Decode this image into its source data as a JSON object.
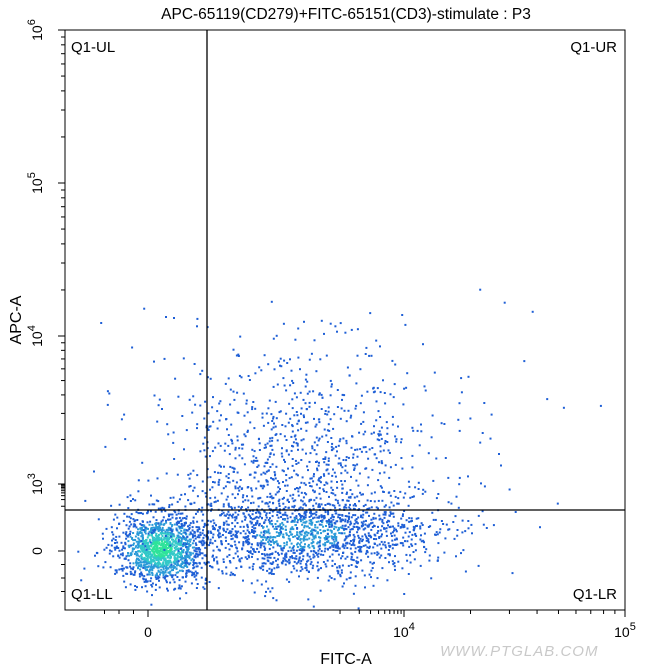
{
  "chart_data": {
    "type": "scatter",
    "plot_style": "density dot plot",
    "title": "APC-65119(CD279)+FITC-65151(CD3)-stimulate : P3",
    "xlabel": "FITC-A",
    "ylabel": "APC-A",
    "x_scale": "biexponential",
    "y_scale": "biexponential",
    "x_ticks": [
      {
        "value": 0,
        "label": "0",
        "exp": ""
      },
      {
        "value": 10000,
        "label": "10",
        "exp": "4"
      },
      {
        "value": 100000,
        "label": "10",
        "exp": "5"
      }
    ],
    "y_ticks": [
      {
        "value": 0,
        "label": "0",
        "exp": ""
      },
      {
        "value": 1000,
        "label": "10",
        "exp": "3"
      },
      {
        "value": 10000,
        "label": "10",
        "exp": "4"
      },
      {
        "value": 100000,
        "label": "10",
        "exp": "5"
      },
      {
        "value": 1000000,
        "label": "10",
        "exp": "6"
      }
    ],
    "gate": {
      "x": 1600,
      "y": 700
    },
    "quadrants": {
      "UL": "Q1-UL",
      "UR": "Q1-UR",
      "LL": "Q1-LL",
      "LR": "Q1-LR"
    },
    "grid": false,
    "density_colors": [
      "#1e5fd6",
      "#2a9ad8",
      "#32c8c8",
      "#2ee39a"
    ],
    "populations": [
      {
        "name_hidden": true,
        "x_center": 100,
        "y_center": 50,
        "count": 1300
      },
      {
        "name_hidden": true,
        "x_center": 3000,
        "y_center": 130,
        "count": 1600
      },
      {
        "name_hidden": true,
        "x_center": 3200,
        "y_center": 1500,
        "count": 1000
      }
    ]
  },
  "watermark": "WWW.PTGLAB.COM"
}
